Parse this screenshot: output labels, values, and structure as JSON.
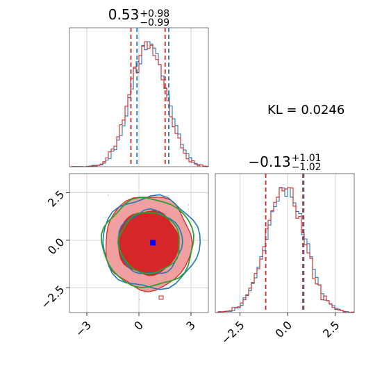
{
  "chart_data": [
    {
      "type": "histogram",
      "panel": "marginal-x",
      "title": "0.53",
      "title_sup": "+0.98",
      "title_sub": "−0.99",
      "xlim": [
        -4,
        4
      ],
      "grid": true,
      "series": [
        {
          "color": "#1f77b4",
          "hist_x_center": 0.6,
          "hist_sd": 1.0,
          "quantile_lines": [
            -0.11,
            1.72
          ]
        },
        {
          "color": "#d62728",
          "hist_x_center": 0.5,
          "hist_sd": 1.0,
          "quantile_lines": [
            -0.46,
            1.51
          ]
        }
      ]
    },
    {
      "type": "histogram",
      "panel": "marginal-y",
      "title": "−0.13",
      "title_sup": "+1.01",
      "title_sub": "−1.02",
      "xlim": [
        -3.8,
        3.5
      ],
      "xticks": [
        -2.5,
        0.0,
        2.5
      ],
      "xtick_labels": [
        "−2.5",
        "0.0",
        "2.5"
      ],
      "grid": true,
      "series": [
        {
          "color": "#1f77b4",
          "hist_x_center": -0.1,
          "hist_sd": 1.0,
          "quantile_lines": [
            0.85
          ]
        },
        {
          "color": "#d62728",
          "hist_x_center": -0.15,
          "hist_sd": 1.0,
          "quantile_lines": [
            -1.15,
            0.8
          ]
        }
      ]
    },
    {
      "type": "contour",
      "panel": "joint",
      "xlim": [
        -4,
        4
      ],
      "ylim": [
        -3.8,
        3.5
      ],
      "xticks": [
        -3,
        0,
        3
      ],
      "xtick_labels": [
        "−3",
        "0",
        "3"
      ],
      "yticks": [
        2.5,
        0.0,
        -2.5
      ],
      "ytick_labels": [
        "2.5",
        "0.0",
        "−2.5"
      ],
      "grid": true,
      "center": {
        "x": 0.53,
        "y": -0.13
      },
      "marker_blue": {
        "x": 0.8,
        "y": -0.13
      },
      "marker_red": {
        "x": 0.5,
        "y": -0.13
      },
      "contour_colors": {
        "blue": "#1f77b4",
        "red": "#d62728",
        "green": "#2ca02c",
        "fill_dark": "#d62728",
        "fill_light": "#f0a0a0"
      }
    }
  ],
  "annotation": {
    "kl_text": "KL = 0.0246"
  }
}
